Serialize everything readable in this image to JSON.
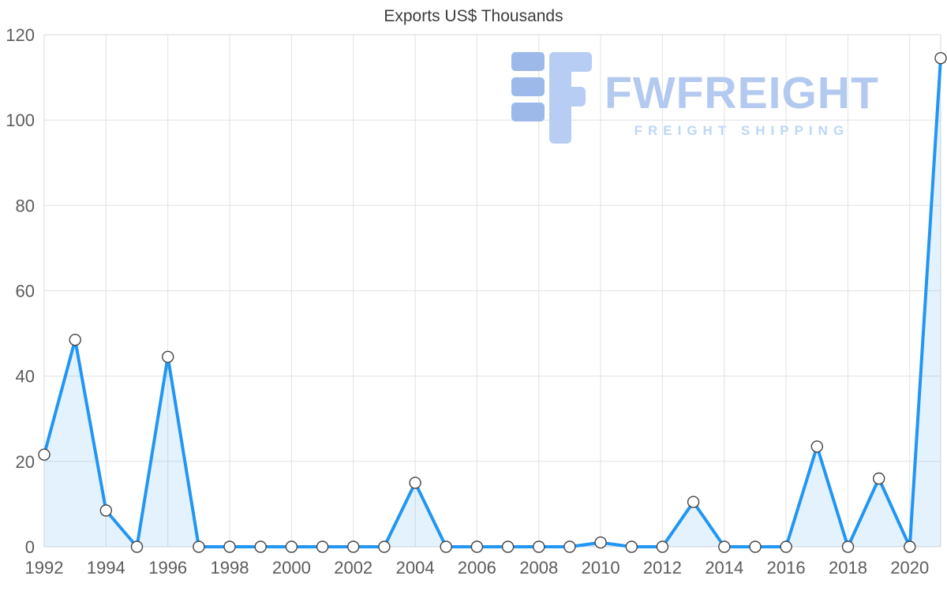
{
  "watermark": {
    "brand": "FWFREIGHT",
    "tagline": "FREIGHT SHIPPING",
    "logo_dark": "#9db9ea",
    "logo_light": "#b7cdf4",
    "text_color": "#b3c9f0",
    "tagline_color": "#bdd7f7"
  },
  "chart_data": {
    "type": "line",
    "title": "Exports US$ Thousands",
    "x": [
      1992,
      1993,
      1994,
      1995,
      1996,
      1997,
      1998,
      1999,
      2000,
      2001,
      2002,
      2003,
      2004,
      2005,
      2006,
      2007,
      2008,
      2009,
      2010,
      2011,
      2012,
      2013,
      2014,
      2015,
      2016,
      2017,
      2018,
      2019,
      2020,
      2021
    ],
    "values": [
      21.6,
      48.5,
      8.5,
      0,
      44.5,
      0,
      0,
      0,
      0,
      0,
      0,
      0,
      15,
      0,
      0,
      0,
      0,
      0,
      1,
      0,
      0,
      10.5,
      0,
      0,
      0,
      23.5,
      0,
      16,
      0,
      114.5
    ],
    "ylim": [
      0,
      120
    ],
    "y_ticks": [
      0,
      20,
      40,
      60,
      80,
      100,
      120
    ],
    "x_tick_step": 2,
    "x_label_max": 2020,
    "grid_on": true,
    "line_color": "#2196f3",
    "fill_color": "rgba(33,150,243,0.12)",
    "marker_fill": "#ffffff",
    "marker_stroke": "#444444",
    "grid_color": "#e2e2e2",
    "border_color": "#d8d8d8",
    "tick_color": "#5c5c5c"
  }
}
